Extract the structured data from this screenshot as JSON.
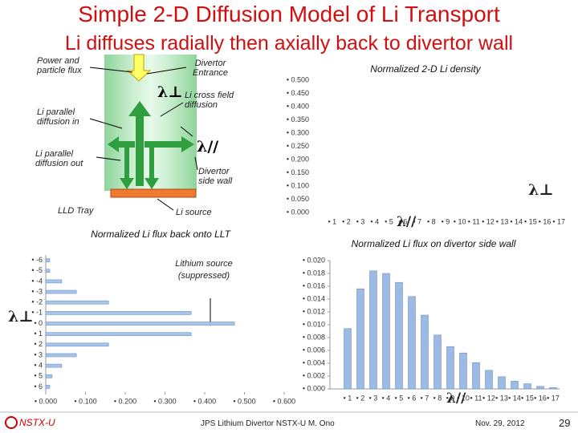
{
  "header": {
    "title": "Simple 2-D Diffusion Model of Li Transport",
    "subtitle": "Li diffuses radially then axially back to divertor wall"
  },
  "diagram": {
    "power_flux": "Power and particle flux",
    "entrance": "Divertor Entrance",
    "lambda_perp": "λ⊥",
    "cross_field": "Li cross field diffusion",
    "parallel_in": "Li parallel diffusion in",
    "lambda_par": "λ//",
    "parallel_out": "Li parallel diffusion out",
    "side_wall": "Divertor side wall",
    "tray": "LLD Tray",
    "source": "Li source"
  },
  "chart_data": [
    {
      "type": "bar",
      "title": "Normalized 2-D Li density",
      "categories": [
        "• 1",
        "• 2",
        "• 3",
        "• 4",
        "• 5",
        "• 6",
        "• 7",
        "• 8",
        "• 9",
        "• 10",
        "• 11",
        "• 12",
        "• 13",
        "• 14",
        "• 15",
        "• 16",
        "• 17"
      ],
      "ylim": [
        0,
        0.5
      ],
      "yticks": [
        {
          "value": 0,
          "label": "• 0.000"
        },
        {
          "value": 0.05,
          "label": "• 0.050"
        },
        {
          "value": 0.1,
          "label": "• 0.100"
        },
        {
          "value": 0.15,
          "label": "• 0.150"
        },
        {
          "value": 0.2,
          "label": "• 0.200"
        },
        {
          "value": 0.25,
          "label": "• 0.250"
        },
        {
          "value": 0.3,
          "label": "• 0.300"
        },
        {
          "value": 0.35,
          "label": "• 0.350"
        },
        {
          "value": 0.4,
          "label": "• 0.400"
        },
        {
          "value": 0.45,
          "label": "• 0.450"
        },
        {
          "value": 0.5,
          "label": "• 0.500"
        }
      ],
      "annotations": [
        "λ⊥",
        "λ//"
      ]
    },
    {
      "type": "barh",
      "title": "Normalized Li flux back onto LLT",
      "categories": [
        "• -6",
        "• -5",
        "• -4",
        "• -3",
        "• -2",
        "• -1",
        "• 0",
        "• 1",
        "• 2",
        "• 3",
        "• 4",
        "• 5",
        "• 6"
      ],
      "values": [
        0.01,
        0.01,
        0.04,
        0.077,
        0.158,
        0.366,
        0.475,
        0.366,
        0.158,
        0.077,
        0.04,
        0.016,
        0.01
      ],
      "color": "#a8c4e8",
      "xlim": [
        0,
        0.6
      ],
      "xticks": [
        {
          "value": 0,
          "label": "• 0.000"
        },
        {
          "value": 0.1,
          "label": "• 0.100"
        },
        {
          "value": 0.2,
          "label": "• 0.200"
        },
        {
          "value": 0.3,
          "label": "• 0.300"
        },
        {
          "value": 0.4,
          "label": "• 0.400"
        },
        {
          "value": 0.5,
          "label": "• 0.500"
        },
        {
          "value": 0.6,
          "label": "• 0.600"
        }
      ],
      "annotations": [
        "Lithium source (suppressed)",
        "λ⊥"
      ]
    },
    {
      "type": "bar",
      "title": "Normalized Li flux on divertor side wall",
      "categories": [
        "• 1",
        "• 2",
        "• 3",
        "• 4",
        "• 5",
        "• 6",
        "• 7",
        "• 8",
        "• 9",
        "• 10",
        "• 11",
        "• 12",
        "• 13",
        "• 14",
        "• 15",
        "• 16",
        "• 17"
      ],
      "values": [
        0.0094,
        0.0156,
        0.0184,
        0.018,
        0.0166,
        0.0144,
        0.0115,
        0.0084,
        0.0066,
        0.0056,
        0.0041,
        0.0029,
        0.0019,
        0.0012,
        0.0008,
        0.0004,
        0.0002
      ],
      "color": "#9dbae2",
      "ylim": [
        0,
        0.02
      ],
      "yticks": [
        {
          "value": 0,
          "label": "• 0.000"
        },
        {
          "value": 0.002,
          "label": "• 0.002"
        },
        {
          "value": 0.004,
          "label": "• 0.004"
        },
        {
          "value": 0.006,
          "label": "• 0.006"
        },
        {
          "value": 0.008,
          "label": "• 0.008"
        },
        {
          "value": 0.01,
          "label": "• 0.010"
        },
        {
          "value": 0.012,
          "label": "• 0.012"
        },
        {
          "value": 0.014,
          "label": "• 0.014"
        },
        {
          "value": 0.016,
          "label": "• 0.016"
        },
        {
          "value": 0.018,
          "label": "• 0.018"
        },
        {
          "value": 0.02,
          "label": "• 0.020"
        }
      ],
      "annotations": [
        "λ//"
      ]
    }
  ],
  "footer": {
    "logo": "NSTX-U",
    "center": "JPS Lithium Divertor NSTX-U M. Ono",
    "date": "Nov. 29, 2012",
    "page": "29"
  }
}
